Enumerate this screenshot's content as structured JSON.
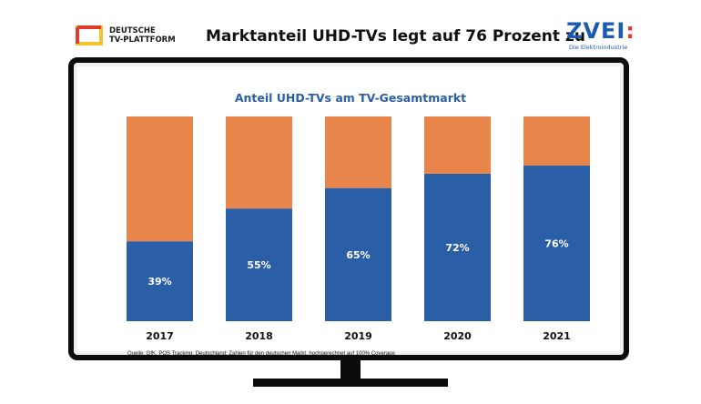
{
  "header": {
    "title": "Marktanteil UHD-TVs legt auf 76 Prozent zu",
    "logo_left": "DEUTSCHE TV-PLATTFORM",
    "logo_right": "ZVEI:",
    "logo_right_sub": "Die Elektroindustrie"
  },
  "chart_data": {
    "type": "bar",
    "stacked": true,
    "title": "Anteil UHD-TVs am TV-Gesamtmarkt",
    "categories": [
      "2017",
      "2018",
      "2019",
      "2020",
      "2021"
    ],
    "series": [
      {
        "values": [
          39,
          55,
          65,
          72,
          76
        ],
        "labels": [
          "39%",
          "55%",
          "65%",
          "72%",
          "76%"
        ],
        "color": "#2a5fa8"
      },
      {
        "values": [
          61,
          45,
          35,
          28,
          24
        ],
        "color": "#e8854a"
      }
    ],
    "ylim": [
      0,
      100
    ],
    "grid": false,
    "source": "Quelle: GfK, POS Tracking, Deutschland: Zahlen für den deutschen Markt, hochgerechnet auf 100% Coverage"
  },
  "colors": {
    "uhd": "#2a5fa8",
    "other": "#e8854a",
    "title": "#2a5fa8",
    "frame": "#0c0c0c"
  }
}
